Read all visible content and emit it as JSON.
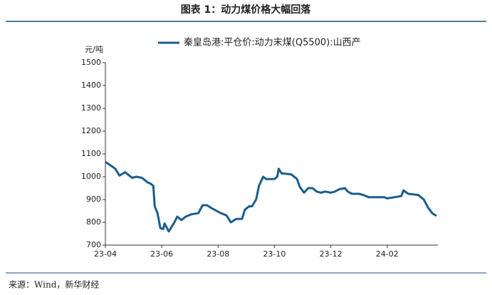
{
  "chart_data": {
    "type": "line",
    "title": "图表 1：动力煤价格大幅回落",
    "y_label": "元/吨",
    "source": "来源：Wind，新华财经",
    "x": [
      0,
      0.18,
      0.35,
      0.5,
      0.7,
      0.8,
      0.95,
      1.1,
      1.3,
      1.5,
      1.6,
      1.7,
      1.75,
      1.85,
      1.95,
      2.05,
      2.1,
      2.25,
      2.45,
      2.55,
      2.7,
      2.85,
      3.05,
      3.3,
      3.45,
      3.6,
      3.8,
      4.1,
      4.3,
      4.45,
      4.65,
      4.85,
      4.95,
      5.1,
      5.2,
      5.35,
      5.45,
      5.6,
      5.7,
      6.0,
      6.1,
      6.15,
      6.25,
      6.6,
      6.8,
      6.9,
      7.05,
      7.2,
      7.35,
      7.5,
      7.65,
      7.8,
      8.0,
      8.15,
      8.3,
      8.5,
      8.6,
      8.75,
      9.0,
      9.15,
      9.35,
      9.9,
      10.0,
      10.25,
      10.5,
      10.58,
      10.75,
      11.1,
      11.3,
      11.45,
      11.6,
      11.75
    ],
    "series": [
      {
        "name": "秦皇岛港:平仓价:动力末煤(Q5500):山西产",
        "color": "#1a5e8c",
        "values": [
          1065,
          1050,
          1035,
          1005,
          1020,
          1010,
          995,
          1000,
          995,
          975,
          970,
          960,
          870,
          840,
          775,
          770,
          795,
          760,
          800,
          825,
          810,
          825,
          835,
          840,
          875,
          875,
          860,
          840,
          830,
          800,
          815,
          815,
          855,
          870,
          870,
          900,
          960,
          1000,
          990,
          990,
          1000,
          1035,
          1015,
          1010,
          990,
          955,
          930,
          950,
          950,
          935,
          930,
          935,
          930,
          935,
          945,
          950,
          935,
          925,
          925,
          920,
          910,
          910,
          905,
          910,
          915,
          940,
          925,
          920,
          900,
          865,
          840,
          828
        ]
      }
    ],
    "xlim": [
      0,
      11.8
    ],
    "xticks": [
      {
        "value": 0,
        "label": "23-04"
      },
      {
        "value": 2,
        "label": "23-06"
      },
      {
        "value": 4,
        "label": "23-08"
      },
      {
        "value": 6,
        "label": "23-10"
      },
      {
        "value": 8,
        "label": "23-12"
      },
      {
        "value": 10,
        "label": "24-02"
      }
    ],
    "ylim": [
      700,
      1500
    ],
    "yticks": [
      700,
      800,
      900,
      1000,
      1100,
      1200,
      1300,
      1400,
      1500
    ],
    "grid": false
  }
}
